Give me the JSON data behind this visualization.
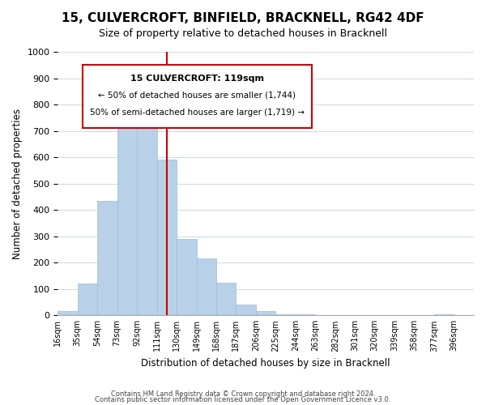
{
  "title": "15, CULVERCROFT, BINFIELD, BRACKNELL, RG42 4DF",
  "subtitle": "Size of property relative to detached houses in Bracknell",
  "xlabel": "Distribution of detached houses by size in Bracknell",
  "ylabel": "Number of detached properties",
  "bar_color": "#b8d0e8",
  "bar_edge_color": "#a0bcd8",
  "bin_labels": [
    "16sqm",
    "35sqm",
    "54sqm",
    "73sqm",
    "92sqm",
    "111sqm",
    "130sqm",
    "149sqm",
    "168sqm",
    "187sqm",
    "206sqm",
    "225sqm",
    "244sqm",
    "263sqm",
    "282sqm",
    "301sqm",
    "320sqm",
    "339sqm",
    "358sqm",
    "377sqm",
    "396sqm"
  ],
  "bar_heights": [
    15,
    120,
    435,
    795,
    810,
    590,
    290,
    215,
    125,
    40,
    15,
    5,
    5,
    0,
    0,
    0,
    0,
    0,
    0,
    5,
    0
  ],
  "ylim": [
    0,
    1000
  ],
  "yticks": [
    0,
    100,
    200,
    300,
    400,
    500,
    600,
    700,
    800,
    900,
    1000
  ],
  "vline_x": 5.5,
  "vline_color": "#cc0000",
  "annotation_title": "15 CULVERCROFT: 119sqm",
  "annotation_line1": "← 50% of detached houses are smaller (1,744)",
  "annotation_line2": "50% of semi-detached houses are larger (1,719) →",
  "annotation_box_color": "#ffffff",
  "annotation_box_edge": "#cc0000",
  "footer1": "Contains HM Land Registry data © Crown copyright and database right 2024.",
  "footer2": "Contains public sector information licensed under the Open Government Licence v3.0.",
  "background_color": "#ffffff",
  "grid_color": "#d0dce8"
}
